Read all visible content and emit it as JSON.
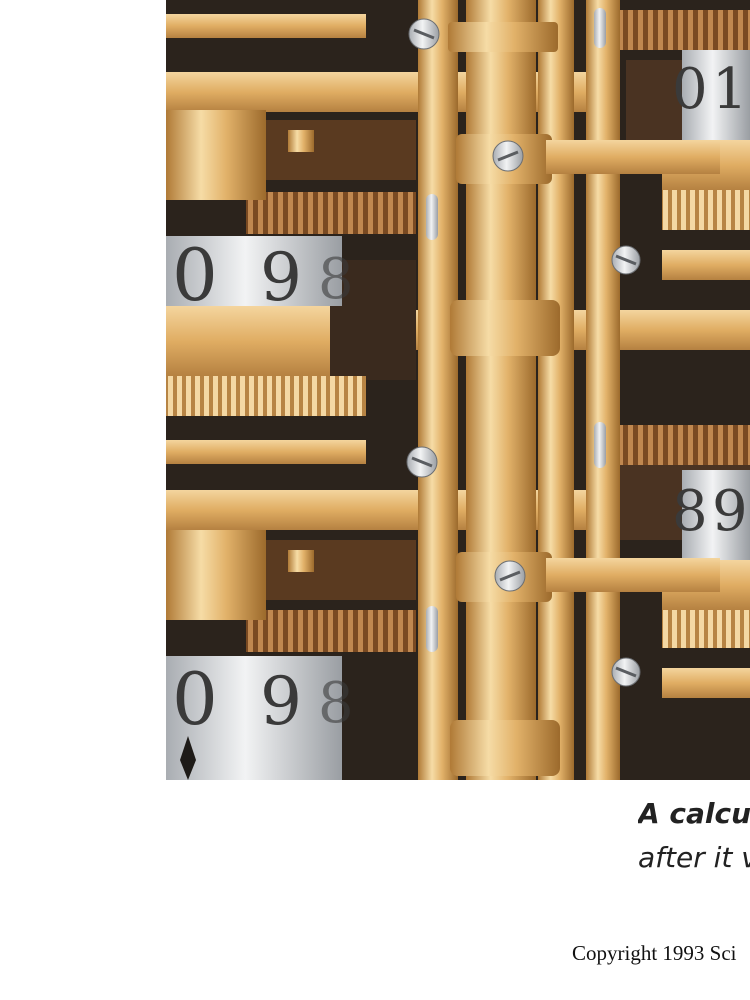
{
  "illustration": {
    "description_icon": "brass-gear-mechanism-illustration",
    "dials": [
      {
        "digits": [
          "0",
          "9",
          "8"
        ]
      },
      {
        "digits": [
          "0",
          "9",
          "8"
        ]
      },
      {
        "digits": [
          "0",
          "1"
        ]
      },
      {
        "digits": [
          "8",
          "9"
        ]
      }
    ],
    "colors": {
      "brass_light": "#f3d29a",
      "brass_mid": "#d9a85f",
      "brass_dark": "#9c6a2c",
      "shadow": "#2b231c",
      "steel": "#c9ccd0"
    }
  },
  "caption": {
    "line1": "A calcul",
    "line2": "after it v"
  },
  "footer": {
    "copyright": "Copyright 1993 Sci"
  }
}
